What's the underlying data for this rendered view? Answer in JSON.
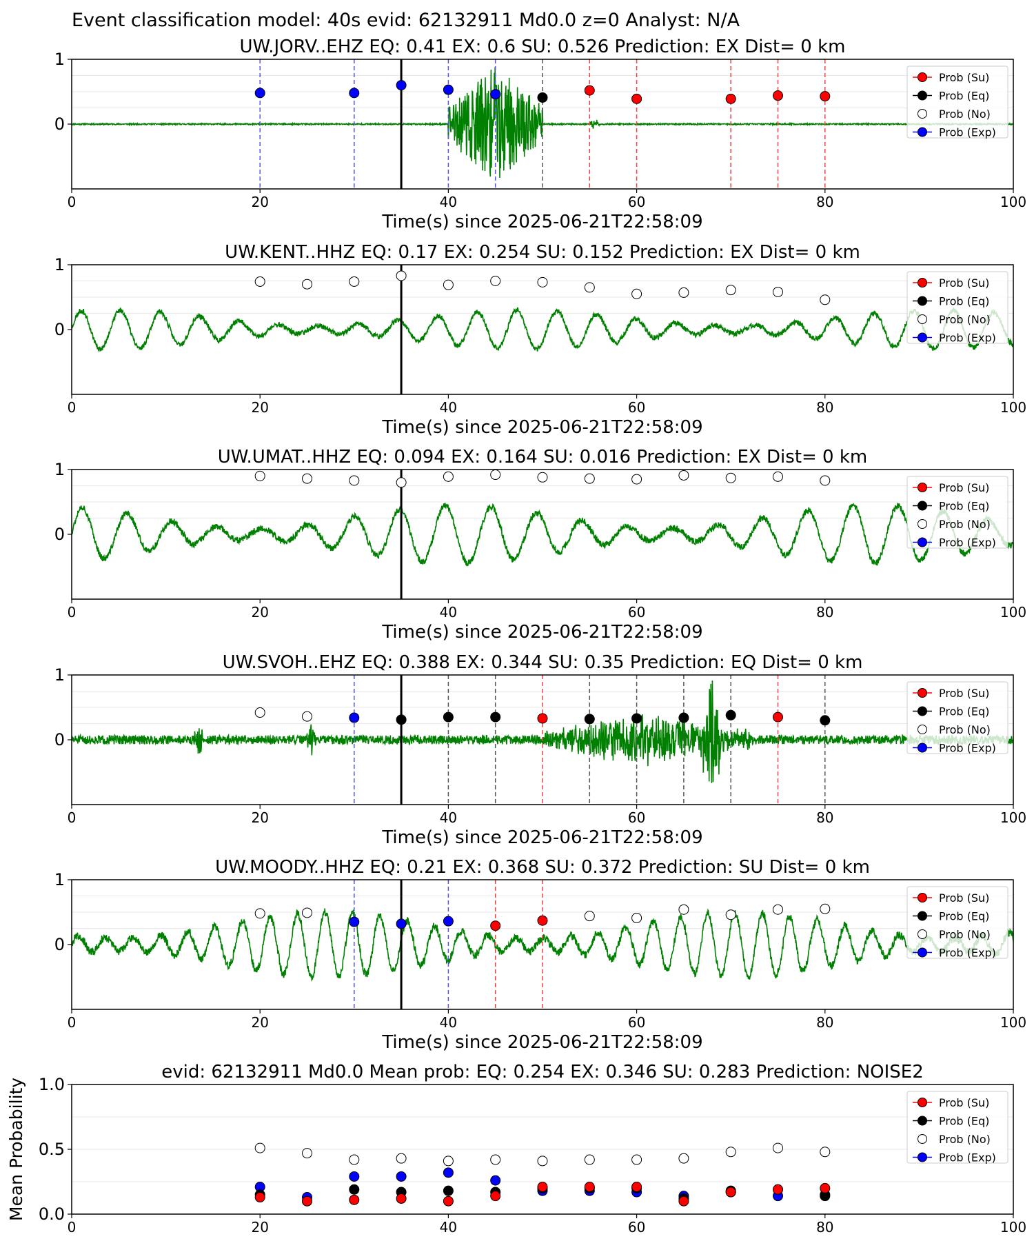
{
  "suptitle": "Event classification model: 40s evid: 62132911 Md0.0 z=0 Analyst: N/A",
  "legend_labels": [
    "Prob (Su)",
    "Prob (Eq)",
    "Prob (No)",
    "Prob (Exp)"
  ],
  "colors": {
    "su": "#ff0000",
    "eq": "#000000",
    "no": "#ffffff",
    "exp": "#0000ff",
    "waveform": "#008000"
  },
  "chart_data": [
    {
      "type": "line",
      "station": "UW.JORV..EHZ",
      "title": "UW.JORV..EHZ   EQ: 0.41  EX: 0.6  SU: 0.526   Prediction: EX    Dist= 0 km",
      "xlabel": "Time(s) since 2025-06-21T22:58:09",
      "ylabel": "",
      "xlim": [
        0,
        100
      ],
      "ylim": [
        -1,
        1
      ],
      "xticks": [
        "0",
        "20",
        "40",
        "60",
        "80",
        "100"
      ],
      "yticks": [
        "0",
        "1"
      ],
      "pick_time": 35,
      "waveform": {
        "baseline": 0.0,
        "noise": 0.01,
        "bursts": [
          [
            40,
            50,
            0.9
          ],
          [
            55,
            56,
            0.1
          ]
        ],
        "period": 0,
        "seed": 11
      },
      "points": [
        {
          "x": 20,
          "y": 0.48,
          "cls": "exp"
        },
        {
          "x": 30,
          "y": 0.48,
          "cls": "exp"
        },
        {
          "x": 35,
          "y": 0.6,
          "cls": "exp"
        },
        {
          "x": 40,
          "y": 0.53,
          "cls": "exp"
        },
        {
          "x": 45,
          "y": 0.46,
          "cls": "exp"
        },
        {
          "x": 50,
          "y": 0.41,
          "cls": "eq"
        },
        {
          "x": 55,
          "y": 0.52,
          "cls": "su"
        },
        {
          "x": 60,
          "y": 0.39,
          "cls": "su"
        },
        {
          "x": 70,
          "y": 0.39,
          "cls": "su"
        },
        {
          "x": 75,
          "y": 0.44,
          "cls": "su"
        },
        {
          "x": 80,
          "y": 0.43,
          "cls": "su"
        }
      ]
    },
    {
      "type": "line",
      "station": "UW.KENT..HHZ",
      "title": "UW.KENT..HHZ   EQ: 0.17  EX: 0.254  SU: 0.152   Prediction: EX    Dist= 0 km",
      "xlabel": "Time(s) since 2025-06-21T22:58:09",
      "ylabel": "",
      "xlim": [
        0,
        100
      ],
      "ylim": [
        -1,
        1
      ],
      "xticks": [
        "0",
        "20",
        "40",
        "60",
        "80",
        "100"
      ],
      "yticks": [
        "0",
        "1"
      ],
      "pick_time": 35,
      "waveform": {
        "baseline": 0.0,
        "noise": 0.04,
        "bursts": [],
        "period": 4.2,
        "amp": 0.3,
        "seed": 23
      },
      "points": [
        {
          "x": 20,
          "y": 0.74,
          "cls": "no"
        },
        {
          "x": 25,
          "y": 0.7,
          "cls": "no"
        },
        {
          "x": 30,
          "y": 0.74,
          "cls": "no"
        },
        {
          "x": 35,
          "y": 0.83,
          "cls": "no"
        },
        {
          "x": 40,
          "y": 0.69,
          "cls": "no"
        },
        {
          "x": 45,
          "y": 0.75,
          "cls": "no"
        },
        {
          "x": 50,
          "y": 0.73,
          "cls": "no"
        },
        {
          "x": 55,
          "y": 0.65,
          "cls": "no"
        },
        {
          "x": 60,
          "y": 0.55,
          "cls": "no"
        },
        {
          "x": 65,
          "y": 0.57,
          "cls": "no"
        },
        {
          "x": 70,
          "y": 0.61,
          "cls": "no"
        },
        {
          "x": 75,
          "y": 0.58,
          "cls": "no"
        },
        {
          "x": 80,
          "y": 0.46,
          "cls": "no"
        }
      ]
    },
    {
      "type": "line",
      "station": "UW.UMAT..HHZ",
      "title": "UW.UMAT..HHZ   EQ: 0.094  EX: 0.164  SU: 0.016   Prediction: EX    Dist= 0 km",
      "xlabel": "Time(s) since 2025-06-21T22:58:09",
      "ylabel": "",
      "xlim": [
        0,
        100
      ],
      "ylim": [
        -1,
        1
      ],
      "xticks": [
        "0",
        "20",
        "40",
        "60",
        "80",
        "100"
      ],
      "yticks": [
        "0",
        "1"
      ],
      "pick_time": 35,
      "waveform": {
        "baseline": 0.0,
        "noise": 0.05,
        "bursts": [],
        "period": 4.8,
        "amp": 0.45,
        "seed": 37
      },
      "points": [
        {
          "x": 20,
          "y": 0.9,
          "cls": "no"
        },
        {
          "x": 25,
          "y": 0.86,
          "cls": "no"
        },
        {
          "x": 30,
          "y": 0.83,
          "cls": "no"
        },
        {
          "x": 35,
          "y": 0.8,
          "cls": "no"
        },
        {
          "x": 40,
          "y": 0.89,
          "cls": "no"
        },
        {
          "x": 45,
          "y": 0.92,
          "cls": "no"
        },
        {
          "x": 50,
          "y": 0.88,
          "cls": "no"
        },
        {
          "x": 55,
          "y": 0.86,
          "cls": "no"
        },
        {
          "x": 60,
          "y": 0.85,
          "cls": "no"
        },
        {
          "x": 65,
          "y": 0.91,
          "cls": "no"
        },
        {
          "x": 70,
          "y": 0.87,
          "cls": "no"
        },
        {
          "x": 75,
          "y": 0.89,
          "cls": "no"
        },
        {
          "x": 80,
          "y": 0.83,
          "cls": "no"
        }
      ]
    },
    {
      "type": "line",
      "station": "UW.SVOH..EHZ",
      "title": "UW.SVOH..EHZ   EQ: 0.388  EX: 0.344  SU: 0.35   Prediction: EQ    Dist= 0 km",
      "xlabel": "Time(s) since 2025-06-21T22:58:09",
      "ylabel": "",
      "xlim": [
        0,
        100
      ],
      "ylim": [
        -1,
        1
      ],
      "xticks": [
        "0",
        "20",
        "40",
        "60",
        "80",
        "100"
      ],
      "yticks": [
        "0",
        "1"
      ],
      "pick_time": 35,
      "waveform": {
        "baseline": 0.0,
        "noise": 0.07,
        "bursts": [
          [
            13,
            14,
            0.25
          ],
          [
            25,
            26,
            0.2
          ],
          [
            50,
            72,
            0.35
          ],
          [
            67,
            69,
            0.9
          ]
        ],
        "period": 0,
        "seed": 51
      },
      "points": [
        {
          "x": 20,
          "y": 0.42,
          "cls": "no"
        },
        {
          "x": 25,
          "y": 0.36,
          "cls": "no"
        },
        {
          "x": 30,
          "y": 0.34,
          "cls": "exp"
        },
        {
          "x": 35,
          "y": 0.31,
          "cls": "eq"
        },
        {
          "x": 40,
          "y": 0.35,
          "cls": "eq"
        },
        {
          "x": 45,
          "y": 0.35,
          "cls": "eq"
        },
        {
          "x": 50,
          "y": 0.33,
          "cls": "su"
        },
        {
          "x": 55,
          "y": 0.32,
          "cls": "eq"
        },
        {
          "x": 60,
          "y": 0.33,
          "cls": "eq"
        },
        {
          "x": 65,
          "y": 0.34,
          "cls": "eq"
        },
        {
          "x": 70,
          "y": 0.38,
          "cls": "eq"
        },
        {
          "x": 75,
          "y": 0.35,
          "cls": "su"
        },
        {
          "x": 80,
          "y": 0.3,
          "cls": "eq"
        }
      ]
    },
    {
      "type": "line",
      "station": "UW.MOODY..HHZ",
      "title": "UW.MOODY..HHZ   EQ: 0.21  EX: 0.368  SU: 0.372   Prediction: SU    Dist= 0 km",
      "xlabel": "Time(s) since 2025-06-21T22:58:09",
      "ylabel": "",
      "xlim": [
        0,
        100
      ],
      "ylim": [
        -1,
        1
      ],
      "xticks": [
        "0",
        "20",
        "40",
        "60",
        "80",
        "100"
      ],
      "yticks": [
        "0",
        "1"
      ],
      "pick_time": 35,
      "waveform": {
        "baseline": 0.0,
        "noise": 0.06,
        "bursts": [],
        "period": 2.9,
        "amp": 0.5,
        "seed": 67
      },
      "points": [
        {
          "x": 20,
          "y": 0.48,
          "cls": "no"
        },
        {
          "x": 25,
          "y": 0.49,
          "cls": "no"
        },
        {
          "x": 30,
          "y": 0.35,
          "cls": "exp"
        },
        {
          "x": 35,
          "y": 0.32,
          "cls": "exp"
        },
        {
          "x": 40,
          "y": 0.36,
          "cls": "exp"
        },
        {
          "x": 45,
          "y": 0.29,
          "cls": "su"
        },
        {
          "x": 50,
          "y": 0.37,
          "cls": "su"
        },
        {
          "x": 55,
          "y": 0.44,
          "cls": "no"
        },
        {
          "x": 60,
          "y": 0.41,
          "cls": "no"
        },
        {
          "x": 65,
          "y": 0.54,
          "cls": "no"
        },
        {
          "x": 70,
          "y": 0.46,
          "cls": "no"
        },
        {
          "x": 75,
          "y": 0.54,
          "cls": "no"
        },
        {
          "x": 80,
          "y": 0.55,
          "cls": "no"
        }
      ]
    },
    {
      "type": "scatter",
      "title": "evid: 62132911  Md0.0   Mean prob:   EQ: 0.254  EX: 0.346  SU: 0.283   Prediction: NOISE2",
      "xlabel": "",
      "ylabel": "Mean Probability",
      "xlim": [
        0,
        100
      ],
      "ylim": [
        0,
        1
      ],
      "xticks": [
        "0",
        "20",
        "40",
        "60",
        "80",
        "100"
      ],
      "yticks": [
        "0.0",
        "0.5",
        "1.0"
      ],
      "x": [
        20,
        25,
        30,
        35,
        40,
        45,
        50,
        55,
        60,
        65,
        70,
        75,
        80
      ],
      "series": [
        {
          "cls": "no",
          "values": [
            0.51,
            0.47,
            0.42,
            0.43,
            0.41,
            0.42,
            0.41,
            0.42,
            0.42,
            0.43,
            0.48,
            0.51,
            0.48
          ]
        },
        {
          "cls": "exp",
          "values": [
            0.21,
            0.13,
            0.29,
            0.29,
            0.32,
            0.26,
            0.18,
            0.18,
            0.17,
            0.14,
            0.17,
            0.14,
            0.15
          ]
        },
        {
          "cls": "eq",
          "values": [
            0.15,
            0.1,
            0.19,
            0.17,
            0.18,
            0.17,
            0.2,
            0.2,
            0.2,
            0.12,
            0.18,
            0.19,
            0.14
          ]
        },
        {
          "cls": "su",
          "values": [
            0.13,
            0.1,
            0.11,
            0.12,
            0.1,
            0.14,
            0.21,
            0.21,
            0.21,
            0.1,
            0.17,
            0.19,
            0.2
          ]
        }
      ]
    }
  ]
}
